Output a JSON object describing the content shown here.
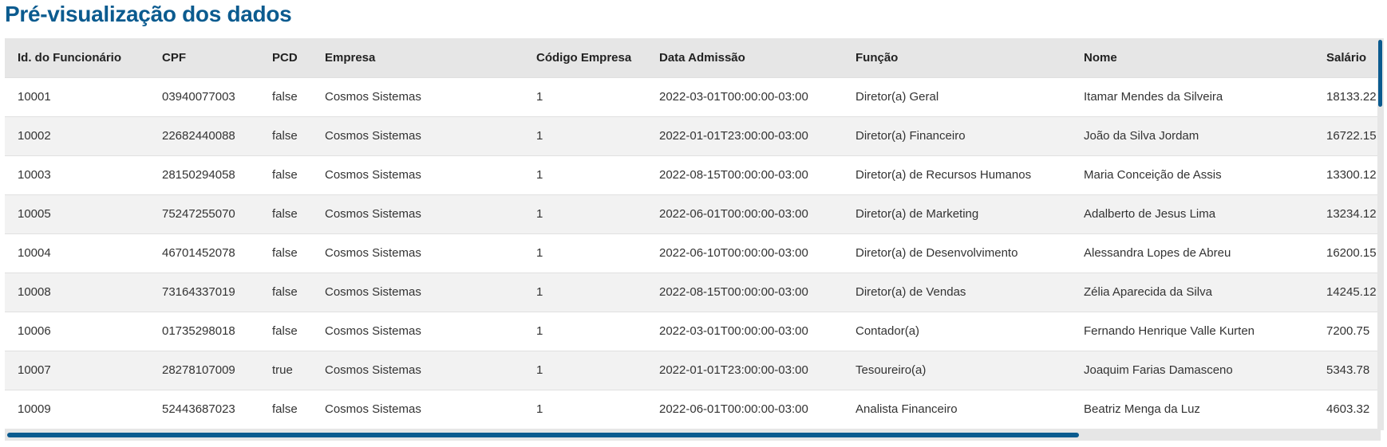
{
  "title": "Pré-visualização dos dados",
  "colors": {
    "accent": "#0b5b8f",
    "header_bg": "#e6e6e6",
    "row_alt": "#f2f2f2"
  },
  "table": {
    "columns": [
      "Id. do Funcionário",
      "CPF",
      "PCD",
      "Empresa",
      "Código Empresa",
      "Data Admissão",
      "Função",
      "Nome",
      "Salário"
    ],
    "rows": [
      [
        "10001",
        "03940077003",
        "false",
        "Cosmos Sistemas",
        "1",
        "2022-03-01T00:00:00-03:00",
        "Diretor(a) Geral",
        "Itamar Mendes da Silveira",
        "18133.22"
      ],
      [
        "10002",
        "22682440088",
        "false",
        "Cosmos Sistemas",
        "1",
        "2022-01-01T23:00:00-03:00",
        "Diretor(a) Financeiro",
        "João da Silva Jordam",
        "16722.15"
      ],
      [
        "10003",
        "28150294058",
        "false",
        "Cosmos Sistemas",
        "1",
        "2022-08-15T00:00:00-03:00",
        "Diretor(a) de Recursos Humanos",
        "Maria Conceição de Assis",
        "13300.12"
      ],
      [
        "10005",
        "75247255070",
        "false",
        "Cosmos Sistemas",
        "1",
        "2022-06-01T00:00:00-03:00",
        "Diretor(a) de Marketing",
        "Adalberto de Jesus Lima",
        "13234.12"
      ],
      [
        "10004",
        "46701452078",
        "false",
        "Cosmos Sistemas",
        "1",
        "2022-06-10T00:00:00-03:00",
        "Diretor(a) de Desenvolvimento",
        "Alessandra Lopes de Abreu",
        "16200.15"
      ],
      [
        "10008",
        "73164337019",
        "false",
        "Cosmos Sistemas",
        "1",
        "2022-08-15T00:00:00-03:00",
        "Diretor(a) de Vendas",
        "Zélia Aparecida da Silva",
        "14245.12"
      ],
      [
        "10006",
        "01735298018",
        "false",
        "Cosmos Sistemas",
        "1",
        "2022-03-01T00:00:00-03:00",
        "Contador(a)",
        "Fernando Henrique Valle Kurten",
        "7200.75"
      ],
      [
        "10007",
        "28278107009",
        "true",
        "Cosmos Sistemas",
        "1",
        "2022-01-01T23:00:00-03:00",
        "Tesoureiro(a)",
        "Joaquim Farias Damasceno",
        "5343.78"
      ],
      [
        "10009",
        "52443687023",
        "false",
        "Cosmos Sistemas",
        "1",
        "2022-06-01T00:00:00-03:00",
        "Analista Financeiro",
        "Beatriz Menga da Luz",
        "4603.32"
      ]
    ]
  }
}
